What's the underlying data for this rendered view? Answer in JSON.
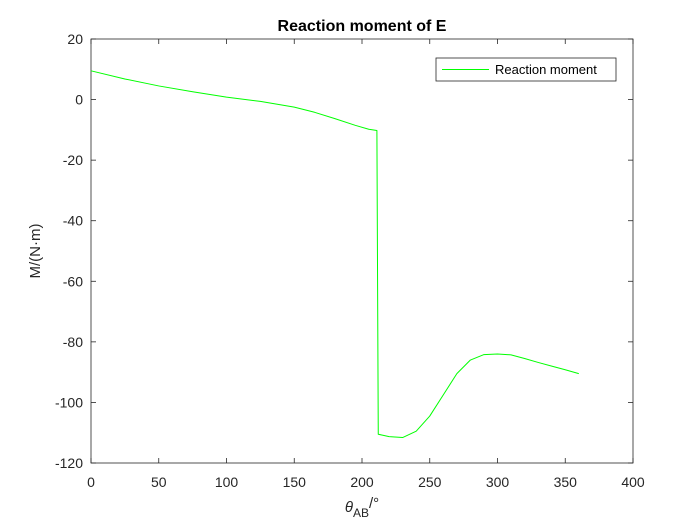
{
  "chart_data": {
    "type": "line",
    "title": "Reaction moment of E",
    "xlabel": {
      "prefix": "θ",
      "subscript": "AB",
      "suffix": "/°"
    },
    "ylabel": "M/(N·m)",
    "xlim": [
      0,
      400
    ],
    "ylim": [
      -120,
      20
    ],
    "xticks": [
      0,
      50,
      100,
      150,
      200,
      250,
      300,
      350,
      400
    ],
    "yticks": [
      -120,
      -100,
      -80,
      -60,
      -40,
      -20,
      0,
      20
    ],
    "grid": false,
    "legend_position": "top-right",
    "series": [
      {
        "name": "Reaction moment",
        "color": "#00ff00",
        "x": [
          0,
          25,
          50,
          75,
          100,
          125,
          150,
          165,
          180,
          195,
          205,
          211,
          212,
          215,
          220,
          230,
          240,
          250,
          260,
          270,
          280,
          290,
          300,
          310,
          320,
          330,
          340,
          350,
          360
        ],
        "y": [
          9.5,
          6.8,
          4.5,
          2.6,
          0.8,
          -0.6,
          -2.5,
          -4.2,
          -6.3,
          -8.5,
          -9.8,
          -10.2,
          -110.5,
          -110.8,
          -111.3,
          -111.6,
          -109.5,
          -104.5,
          -97.5,
          -90.5,
          -86.0,
          -84.2,
          -84.0,
          -84.3,
          -85.5,
          -86.8,
          -88.0,
          -89.2,
          -90.5
        ]
      }
    ]
  }
}
